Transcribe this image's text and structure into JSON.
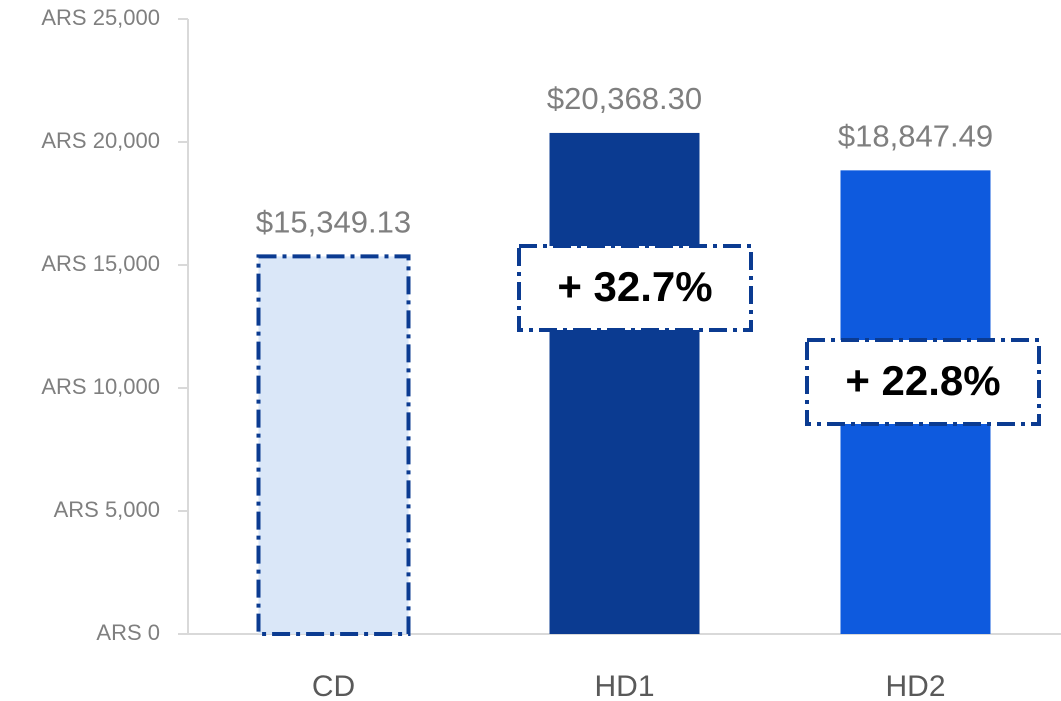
{
  "chart_data": {
    "type": "bar",
    "categories": [
      "CD",
      "HD1",
      "HD2"
    ],
    "values": [
      15349.13,
      20368.3,
      18847.49
    ],
    "value_labels": [
      "$15,349.13",
      "$20,368.30",
      "$18,847.49"
    ],
    "colors": [
      "#dae7f8",
      "#0b3b91",
      "#0e5ade"
    ],
    "ylim": [
      0,
      25000
    ],
    "yticks": [
      {
        "value": 0,
        "label": "ARS 0"
      },
      {
        "value": 5000,
        "label": "ARS 5,000"
      },
      {
        "value": 10000,
        "label": "ARS 10,000"
      },
      {
        "value": 15000,
        "label": "ARS 15,000"
      },
      {
        "value": 20000,
        "label": "ARS 20,000"
      },
      {
        "value": 25000,
        "label": "ARS 25,000"
      }
    ],
    "annotations": [
      "+ 32.7%",
      "+ 22.8%"
    ]
  }
}
